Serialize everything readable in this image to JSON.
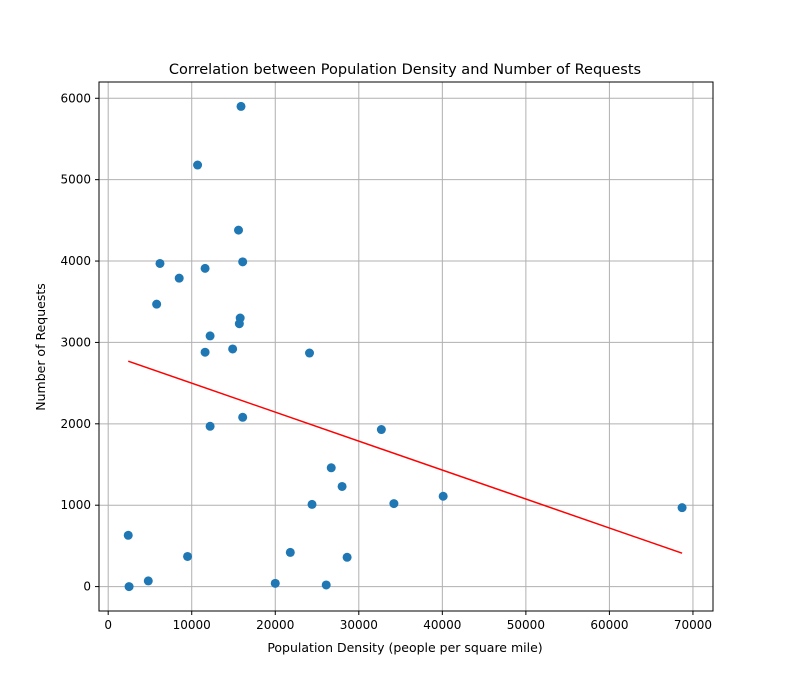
{
  "chart_data": {
    "type": "scatter",
    "title": "Correlation between Population Density and Number of Requests",
    "xlabel": "Population Density (people per square mile)",
    "ylabel": "Number of Requests",
    "xlim": [
      -1100,
      72400
    ],
    "ylim": [
      -300,
      6200
    ],
    "xticks": [
      0,
      10000,
      20000,
      30000,
      40000,
      50000,
      60000,
      70000
    ],
    "yticks": [
      0,
      1000,
      2000,
      3000,
      4000,
      5000,
      6000
    ],
    "grid": true,
    "colors": {
      "points": "#1f77b4",
      "trendline": "#ff0000",
      "grid": "#b0b0b0"
    },
    "points": [
      {
        "x": 15900,
        "y": 5900
      },
      {
        "x": 10700,
        "y": 5180
      },
      {
        "x": 15600,
        "y": 4380
      },
      {
        "x": 6200,
        "y": 3970
      },
      {
        "x": 16100,
        "y": 3990
      },
      {
        "x": 11600,
        "y": 3910
      },
      {
        "x": 8500,
        "y": 3790
      },
      {
        "x": 5800,
        "y": 3470
      },
      {
        "x": 15800,
        "y": 3300
      },
      {
        "x": 15700,
        "y": 3230
      },
      {
        "x": 12200,
        "y": 3080
      },
      {
        "x": 11600,
        "y": 2880
      },
      {
        "x": 14900,
        "y": 2920
      },
      {
        "x": 24100,
        "y": 2870
      },
      {
        "x": 16100,
        "y": 2080
      },
      {
        "x": 12200,
        "y": 1970
      },
      {
        "x": 32700,
        "y": 1930
      },
      {
        "x": 26700,
        "y": 1460
      },
      {
        "x": 28000,
        "y": 1230
      },
      {
        "x": 40100,
        "y": 1110
      },
      {
        "x": 24400,
        "y": 1010
      },
      {
        "x": 34200,
        "y": 1020
      },
      {
        "x": 68700,
        "y": 970
      },
      {
        "x": 2400,
        "y": 630
      },
      {
        "x": 9500,
        "y": 370
      },
      {
        "x": 21800,
        "y": 420
      },
      {
        "x": 28600,
        "y": 360
      },
      {
        "x": 4800,
        "y": 70
      },
      {
        "x": 2500,
        "y": 0
      },
      {
        "x": 20000,
        "y": 40
      },
      {
        "x": 26100,
        "y": 20
      }
    ],
    "trendline": {
      "x": [
        2400,
        68700
      ],
      "y": [
        2770,
        410
      ]
    }
  }
}
